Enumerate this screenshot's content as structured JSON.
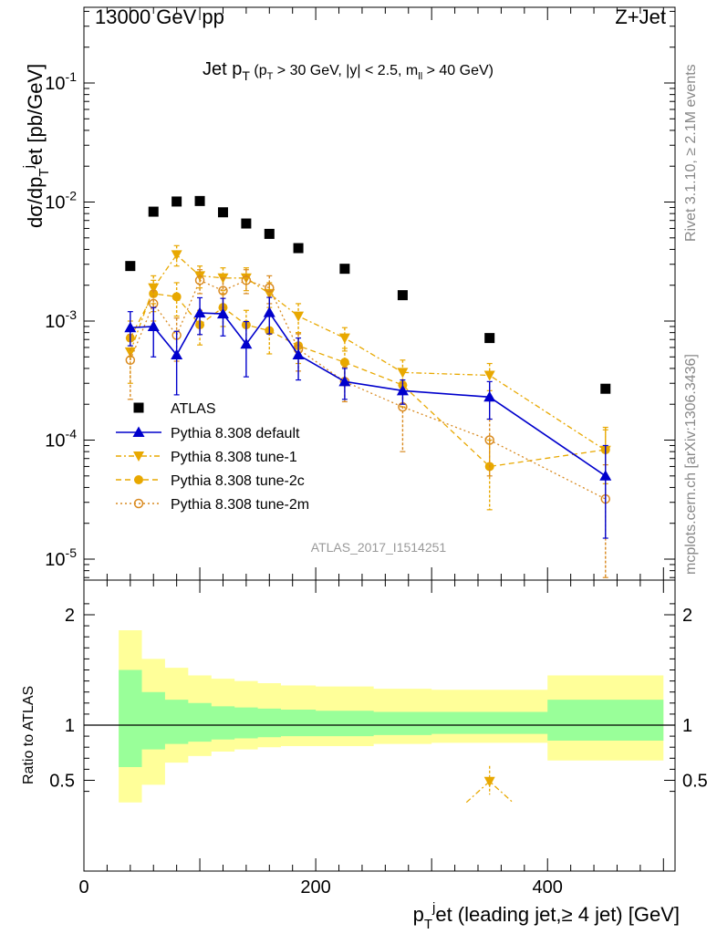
{
  "header": {
    "energy": "13000 GeV pp",
    "process": "Z+Jet"
  },
  "side_labels": {
    "rivet": "Rivet 3.1.10, ≥ 2.1M events",
    "mcplots": "mcplots.cern.ch [arXiv:1306.3436]"
  },
  "watermark": "ATLAS_2017_I1514251",
  "colors": {
    "atlas": "#000000",
    "default": "#0000cc",
    "tune": "#e8a800",
    "tune2m": "#d98a20",
    "band_inner": "#99ff99",
    "band_outer": "#ffff99"
  },
  "chart_data": [
    {
      "type": "scatter",
      "title": "Jet p_T (p_T > 30 GeV, |y| < 2.5, m_ll > 40 GeV)",
      "ylabel": "dσ/dp_T^jet [pb/GeV]",
      "yscale": "log",
      "xlim": [
        0,
        510
      ],
      "ylim": [
        7e-06,
        0.3
      ],
      "yticks": [
        "10^-5",
        "10^-4",
        "10^-3",
        "10^-2",
        "10^-1"
      ],
      "legend_position": "lower-left",
      "series": [
        {
          "name": "ATLAS",
          "marker": "square",
          "x": [
            40,
            60,
            80,
            100,
            120,
            140,
            160,
            185,
            225,
            275,
            350,
            450
          ],
          "y": [
            0.0029,
            0.0083,
            0.0101,
            0.0102,
            0.0082,
            0.0066,
            0.0054,
            0.0041,
            0.00275,
            0.00165,
            0.00072,
            0.00027
          ]
        },
        {
          "name": "Pythia 8.308 default",
          "marker": "triangle-up",
          "line": "solid",
          "x": [
            40,
            60,
            80,
            100,
            120,
            140,
            160,
            185,
            225,
            275,
            350,
            450
          ],
          "y": [
            0.00088,
            0.0009,
            0.00052,
            0.00117,
            0.00115,
            0.00064,
            0.00118,
            0.00052,
            0.00031,
            0.00026,
            0.00023,
            5e-05
          ],
          "err_low": [
            0.00026,
            0.0004,
            0.00028,
            0.0004,
            0.0004,
            0.0003,
            0.0004,
            0.0002,
            9e-05,
            6e-05,
            8e-05,
            3.5e-05
          ],
          "err_high": [
            0.00032,
            0.0004,
            0.0003,
            0.0004,
            0.0004,
            0.00035,
            0.0004,
            0.0002,
            9e-05,
            6e-05,
            8e-05,
            4e-05
          ]
        },
        {
          "name": "Pythia 8.308 tune-1",
          "marker": "triangle-down",
          "line": "dashdot",
          "x": [
            40,
            60,
            80,
            100,
            120,
            140,
            160,
            185,
            225,
            275,
            350,
            450
          ],
          "y": [
            0.00055,
            0.0019,
            0.0036,
            0.0024,
            0.0023,
            0.0023,
            0.0017,
            0.0011,
            0.00072,
            0.00037,
            0.00035,
            8.2e-05
          ],
          "err_low": [
            0.00025,
            0.0005,
            0.0007,
            0.0005,
            0.0005,
            0.0005,
            0.0004,
            0.0003,
            0.00016,
            0.0001,
            9e-05,
            3.5e-05
          ],
          "err_high": [
            0.0003,
            0.0005,
            0.0007,
            0.0005,
            0.0005,
            0.0005,
            0.0004,
            0.0003,
            0.00016,
            0.0001,
            9e-05,
            4e-05
          ]
        },
        {
          "name": "Pythia 8.308 tune-2c",
          "marker": "circle",
          "line": "dashed",
          "x": [
            40,
            60,
            80,
            100,
            120,
            140,
            160,
            185,
            225,
            275,
            350,
            450
          ],
          "y": [
            0.00072,
            0.0017,
            0.0016,
            0.00093,
            0.0013,
            0.00093,
            0.00083,
            0.00062,
            0.00045,
            0.00029,
            6e-05,
            8.3e-05
          ],
          "err_low": [
            0.00022,
            0.0005,
            0.0005,
            0.0003,
            0.0004,
            0.0003,
            0.0003,
            0.00018,
            0.00014,
            0.0001,
            3.4e-05,
            4e-05
          ],
          "err_high": [
            0.00028,
            0.0005,
            0.0005,
            0.0003,
            0.0004,
            0.0003,
            0.0003,
            0.00018,
            0.00014,
            0.0001,
            4e-05,
            4.5e-05
          ]
        },
        {
          "name": "Pythia 8.308 tune-2m",
          "marker": "circle-open",
          "line": "dotted",
          "x": [
            40,
            60,
            80,
            100,
            120,
            140,
            160,
            185,
            225,
            275,
            350,
            450
          ],
          "y": [
            0.00047,
            0.0014,
            0.00076,
            0.0022,
            0.0018,
            0.0022,
            0.0019,
            0.00058,
            0.00031,
            0.00019,
            0.0001,
            3.2e-05
          ],
          "err_low": [
            0.00025,
            0.0004,
            0.0003,
            0.0005,
            0.0005,
            0.0005,
            0.0005,
            0.0002,
            0.0001,
            0.00011,
            5e-05,
            2.6e-05
          ],
          "err_high": [
            0.0003,
            0.0004,
            0.0003,
            0.0005,
            0.0005,
            0.0005,
            0.0005,
            0.0002,
            0.0001,
            0.00011,
            5e-05,
            3e-05
          ]
        }
      ]
    },
    {
      "type": "area",
      "ylabel": "Ratio to ATLAS",
      "xlabel": "p_T^jet (leading jet,≥ 4 jet) [GeV]",
      "xlim": [
        0,
        510
      ],
      "ylim": [
        0.35,
        2.25
      ],
      "xticks": [
        0,
        200,
        400
      ],
      "yticks": [
        0.5,
        1,
        2
      ],
      "bins": [
        30,
        50,
        70,
        90,
        110,
        130,
        150,
        170,
        200,
        250,
        300,
        400,
        500
      ],
      "band_inner": {
        "low": [
          0.62,
          0.78,
          0.83,
          0.85,
          0.87,
          0.88,
          0.89,
          0.9,
          0.9,
          0.91,
          0.92,
          0.86
        ],
        "high": [
          1.5,
          1.3,
          1.23,
          1.2,
          1.17,
          1.16,
          1.15,
          1.14,
          1.13,
          1.12,
          1.12,
          1.23
        ]
      },
      "band_outer": {
        "low": [
          0.3,
          0.46,
          0.66,
          0.72,
          0.76,
          0.78,
          0.8,
          0.81,
          0.81,
          0.83,
          0.84,
          0.68
        ],
        "high": [
          1.86,
          1.6,
          1.52,
          1.45,
          1.42,
          1.4,
          1.38,
          1.36,
          1.35,
          1.33,
          1.32,
          1.45
        ]
      },
      "series": [
        {
          "name": "Pythia 8.308 tune-1",
          "x": [
            330,
            350,
            370
          ],
          "y": [
            0.3,
            0.49,
            0.3
          ],
          "point_index": 1,
          "err_low": [
            0,
            0.12,
            0
          ],
          "err_high": [
            0,
            0.14,
            0
          ]
        }
      ]
    }
  ]
}
